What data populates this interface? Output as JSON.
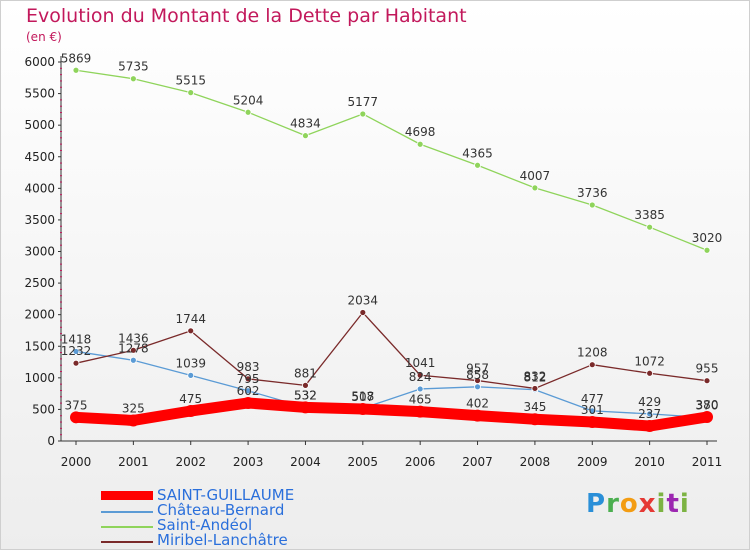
{
  "title": "Evolution du Montant de la Dette par Habitant",
  "unit_label": "(en €)",
  "logo": "Proxiti",
  "chart_data": {
    "type": "line",
    "title": "Evolution du Montant de la Dette par Habitant",
    "ylabel": "(en €)",
    "x": [
      "2000",
      "2001",
      "2002",
      "2003",
      "2004",
      "2005",
      "2006",
      "2007",
      "2008",
      "2009",
      "2010",
      "2011"
    ],
    "ylim": [
      0,
      6000
    ],
    "yticks": [
      0,
      500,
      1000,
      1500,
      2000,
      2500,
      3000,
      3500,
      4000,
      4500,
      5000,
      5500,
      6000
    ],
    "grid": false,
    "legend_position": "bottom-left",
    "series": [
      {
        "name": "SAINT-GUILLAUME",
        "color": "#ff0000",
        "label_color": "#333333",
        "legend_color": "#2a6fdb",
        "thick": true,
        "values": [
          375,
          325,
          475,
          602,
          532,
          507,
          465,
          402,
          345,
          301,
          237,
          380
        ]
      },
      {
        "name": "Château-Bernard",
        "color": "#5b9bd5",
        "label_color": "#333333",
        "legend_color": "#2a6fdb",
        "values": [
          1418,
          1278,
          1039,
          795,
          532,
          518,
          824,
          858,
          812,
          477,
          429,
          370
        ]
      },
      {
        "name": "Saint-Andéol",
        "color": "#8fd45b",
        "label_color": "#333333",
        "legend_color": "#2a6fdb",
        "values": [
          5869,
          5735,
          5515,
          5204,
          4834,
          5177,
          4698,
          4365,
          4007,
          3736,
          3385,
          3020
        ]
      },
      {
        "name": "Miribel-Lanchâtre",
        "color": "#7a2a2a",
        "label_color": "#333333",
        "legend_color": "#2a6fdb",
        "values": [
          1232,
          1436,
          1744,
          983,
          881,
          2034,
          1041,
          957,
          832,
          1208,
          1072,
          955
        ]
      }
    ]
  }
}
